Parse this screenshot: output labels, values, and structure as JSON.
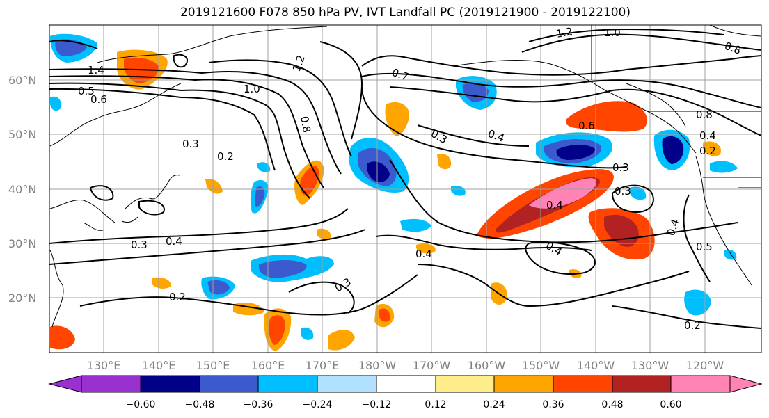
{
  "title": "2019121600 F078 850 hPa PV, IVT Landfall PC (2019121900 - 2019122100)",
  "lat_labels": [
    "60°N",
    "50°N",
    "40°N",
    "30°N",
    "20°N"
  ],
  "lon_labels": [
    "130°E",
    "140°E",
    "150°E",
    "160°E",
    "170°E",
    "180°W",
    "170°W",
    "160°W",
    "150°W",
    "140°W",
    "130°W",
    "120°W"
  ],
  "colorbar": {
    "colors": [
      "#9b30d0",
      "#000088",
      "#3a5acd",
      "#00bfff",
      "#b0e2ff",
      "#ffffff",
      "#ffec8b",
      "#ffa500",
      "#ff4500",
      "#b22222",
      "#ff83b4"
    ],
    "ticks": [
      "−0.60",
      "−0.48",
      "−0.36",
      "−0.24",
      "−0.12",
      "0.12",
      "0.24",
      "0.36",
      "0.48",
      "0.60"
    ]
  },
  "contour_labels": [
    "1.4",
    "1.2",
    "1.0",
    "0.5",
    "0.6",
    "0.7",
    "0.8",
    "0.3",
    "0.2",
    "0.4",
    "0.4",
    "0.3",
    "0.3",
    "0.4",
    "0.2",
    "0.4",
    "0.6",
    "0.3",
    "0.3",
    "0.4",
    "0.4",
    "0.4",
    "0.5",
    "0.2",
    "0.3",
    "0.2",
    "0.8",
    "1.0",
    "0.8",
    "1.2"
  ]
}
